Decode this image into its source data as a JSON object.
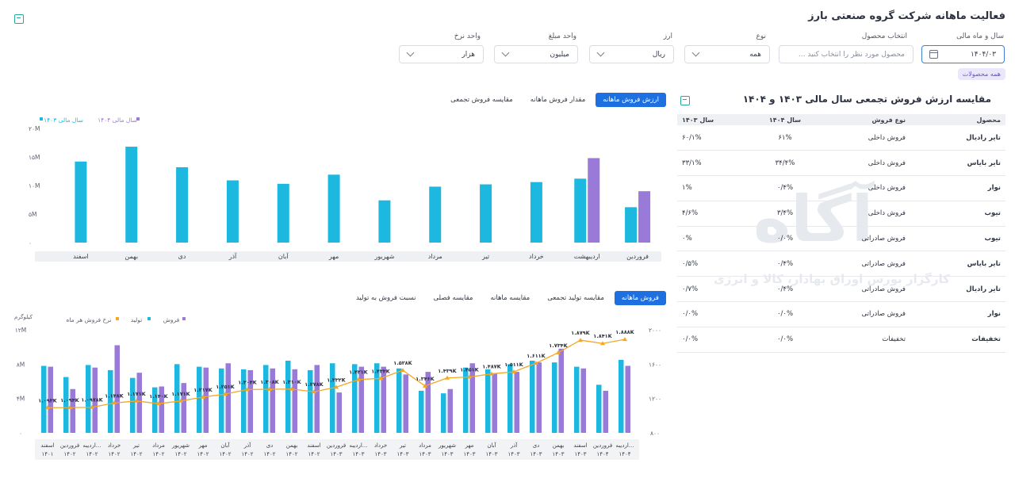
{
  "page": {
    "title": "فعالیت ماهانه شرکت گروه صنعتی بارز"
  },
  "filters": {
    "fiscal": {
      "label": "سال و ماه مالی",
      "value": "۱۴۰۴/۰۳"
    },
    "product": {
      "label": "انتخاب محصول",
      "placeholder": "محصول مورد نظر را انتخاب کنید ..."
    },
    "type": {
      "label": "نوع",
      "value": "همه"
    },
    "currency": {
      "label": "ارز",
      "value": "ریال"
    },
    "amount_unit": {
      "label": "واحد مبلغ",
      "value": "میلیون"
    },
    "rate_unit": {
      "label": "واحد نرخ",
      "value": "هزار"
    },
    "chip": "همه محصولات"
  },
  "top_tabs": [
    "ارزش فروش ماهانه",
    "مقدار فروش ماهانه",
    "مقایسه فروش تجمعی"
  ],
  "bottom_tabs": [
    "فروش ماهانه",
    "مقایسه تولید تجمعی",
    "مقایسه ماهانه",
    "مقایسه فصلی",
    "نسبت فروش به تولید"
  ],
  "comparison": {
    "title": "مقایسه ارزش فروش تجمعی سال مالی ۱۴۰۳ و ۱۴۰۴",
    "headers": [
      "محصول",
      "نوع فروش",
      "سال ۱۴۰۴",
      "سال ۱۴۰۳"
    ],
    "rows": [
      [
        "تایر رادیال",
        "فروش داخلی",
        "۶۱%",
        "۶۰/۱%"
      ],
      [
        "تایر بایاس",
        "فروش داخلی",
        "۳۴/۴%",
        "۳۳/۱%"
      ],
      [
        "نوار",
        "فروش داخلی",
        "۰/۴%",
        "۱%"
      ],
      [
        "تیوب",
        "فروش داخلی",
        "۳/۴%",
        "۴/۶%"
      ],
      [
        "تیوب",
        "فروش صادراتی",
        "۰/۰%",
        "۰%"
      ],
      [
        "تایر بایاس",
        "فروش صادراتی",
        "۰/۴%",
        "۰/۵%"
      ],
      [
        "تایر رادیال",
        "فروش صادراتی",
        "۰/۴%",
        "۰/۷%"
      ],
      [
        "نوار",
        "فروش صادراتی",
        "۰/۰%",
        "۰/۰%"
      ],
      [
        "تخفیفات",
        "تخفیفات",
        "۰/۰%",
        "۰/۰%"
      ]
    ]
  },
  "colors": {
    "cyan": "#1cb8e0",
    "purple": "#9a7ad8",
    "orange": "#f5a623",
    "blue": "#1e6fe0"
  },
  "watermark": {
    "logo": "آگاه",
    "tagline": "کارگزار بورس اوراق بهادار، کالا و انرژی"
  },
  "chart_data": [
    {
      "type": "bar",
      "categories": [
        "فروردین",
        "اردیبهشت",
        "خرداد",
        "تیر",
        "مرداد",
        "شهریور",
        "مهر",
        "آبان",
        "آذر",
        "دی",
        "بهمن",
        "اسفند"
      ],
      "series": [
        {
          "name": "سال مالی ۱۴۰۳",
          "color": "#1cb8e0",
          "values": [
            6.2,
            11.2,
            10.6,
            10.2,
            9.8,
            7.4,
            11.9,
            10.3,
            10.9,
            13.2,
            16.8,
            14.2
          ]
        },
        {
          "name": "سال مالی ۱۴۰۴",
          "color": "#9a7ad8",
          "values": [
            9.0,
            14.8,
            null,
            null,
            null,
            null,
            null,
            null,
            null,
            null,
            null,
            null
          ]
        }
      ],
      "yticks": [
        "۰",
        "۵M",
        "۱۰M",
        "۱۵M",
        "۲۰M"
      ],
      "ylim": [
        0,
        20
      ],
      "legend_position": "top-left"
    },
    {
      "type": "bar-line",
      "categories": [
        "اسفند ۱۴۰۱",
        "فروردین ۱۴۰۲",
        "اردیبه... ۱۴۰۲",
        "خرداد ۱۴۰۲",
        "تیر ۱۴۰۲",
        "مرداد ۱۴۰۲",
        "شهریور ۱۴۰۲",
        "مهر ۱۴۰۲",
        "آبان ۱۴۰۲",
        "آذر ۱۴۰۲",
        "دی ۱۴۰۲",
        "بهمن ۱۴۰۲",
        "اسفند ۱۴۰۲",
        "فروردین ۱۴۰۳",
        "اردیبه... ۱۴۰۳",
        "خرداد ۱۴۰۳",
        "تیر ۱۴۰۳",
        "مرداد ۱۴۰۳",
        "شهریور ۱۴۰۳",
        "مهر ۱۴۰۳",
        "آبان ۱۴۰۳",
        "آذر ۱۴۰۳",
        "دی ۱۴۰۳",
        "بهمن ۱۴۰۳",
        "اسفند ۱۴۰۳",
        "فروردین ۱۴۰۴",
        "اردیبه... ۱۴۰۴"
      ],
      "series": [
        {
          "name": "تولید",
          "color": "#1cb8e0",
          "axis": "left",
          "values": [
            7.8,
            6.5,
            7.9,
            7.3,
            6.4,
            5.3,
            8.0,
            7.7,
            7.5,
            7.4,
            7.9,
            8.4,
            7.3,
            8.1,
            8.0,
            8.1,
            7.5,
            4.9,
            4.6,
            7.6,
            7.4,
            8.0,
            8.4,
            8.2,
            7.7,
            5.6,
            8.5
          ]
        },
        {
          "name": "فروش",
          "color": "#9a7ad8",
          "axis": "left",
          "values": [
            7.7,
            5.1,
            7.6,
            10.2,
            7.0,
            5.4,
            5.8,
            7.6,
            8.1,
            7.3,
            7.5,
            7.4,
            7.9,
            4.7,
            7.7,
            7.7,
            6.8,
            7.1,
            5.1,
            8.1,
            6.9,
            7.1,
            8.2,
            9.8,
            7.5,
            4.9,
            7.8
          ]
        },
        {
          "name": "نرخ فروش هر ماه",
          "color": "#f5a623",
          "axis": "right",
          "values": [
            1093,
            1094,
            1097.8,
            1148,
            1171,
            1140,
            1171,
            1217,
            1251,
            1304,
            1308,
            1310,
            1278,
            1332,
            1421,
            1434,
            1528,
            1346,
            1439,
            1451,
            1487,
            1511,
            1611,
            1734,
            1879,
            1841,
            1888
          ],
          "labels": [
            "۱.۰۹۳K",
            "۱.۰۹۴K",
            "۱.۰۹۷۸K",
            "۱.۱۴۸K",
            "۱.۱۷۱K",
            "۱.۱۴۰K",
            "۱.۱۷۱K",
            "۱.۲۱۷K",
            "۱.۲۵۱K",
            "۱.۳۰۴K",
            "۱.۳۰۸K",
            "۱.۳۱۰K",
            "۱.۲۷۸K",
            "۱.۳۳۲K",
            "۱.۴۲۱K",
            "۱.۴۳۴K",
            "۱.۵۲۸K",
            "۱.۳۴۶K",
            "۱.۴۳۹K",
            "۱.۴۵۱K",
            "۱.۴۸۷K",
            "۱.۵۱۱K",
            "۱.۶۱۱K",
            "۱.۷۳۴K",
            "۱.۸۷۹K",
            "۱.۸۴۱K",
            "۱.۸۸۸K"
          ]
        }
      ],
      "ylabel": "کیلوگرم",
      "yticks_left": [
        "۰",
        "۴M",
        "۸M",
        "۱۲M"
      ],
      "ylim_left": [
        0,
        12
      ],
      "yticks_right": [
        "۸۰۰",
        "۱۲۰۰",
        "۱۶۰۰",
        "۲۰۰۰"
      ],
      "ylim_right": [
        800,
        2000
      ],
      "legend": [
        "فروش",
        "تولید",
        "نرخ فروش هر ماه"
      ],
      "legend_position": "top-right"
    }
  ]
}
